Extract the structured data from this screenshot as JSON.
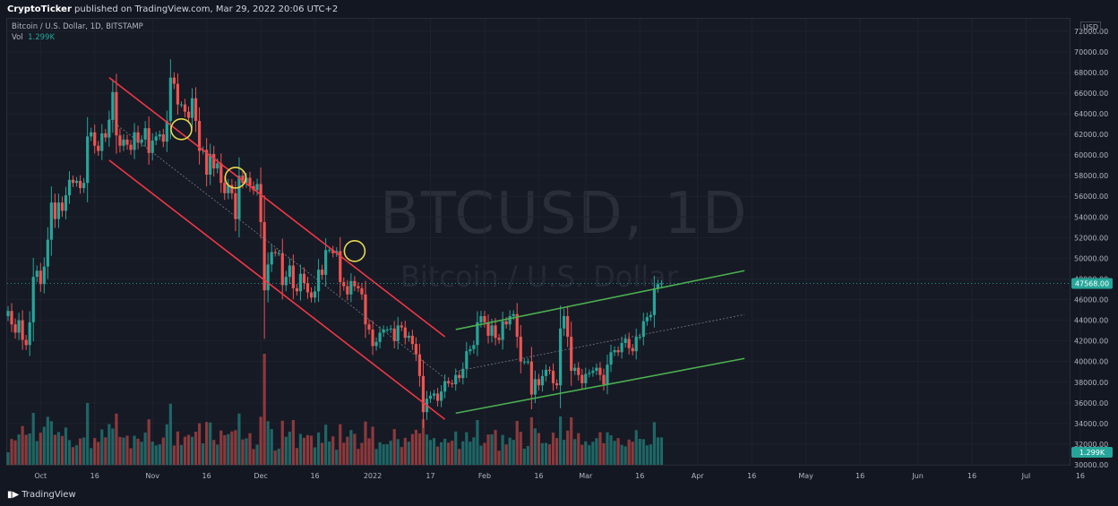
{
  "header": {
    "publisher": "CryptoTicker",
    "published_text": " published on TradingView.com, Mar 29, 2022 20:06 UTC+2"
  },
  "legend": {
    "symbol": "Bitcoin / U.S. Dollar, 1D, BITSTAMP",
    "vol_label": "Vol",
    "vol_value": "1.299K"
  },
  "watermark": {
    "ticker": "BTCUSD, 1D",
    "name": "Bitcoin / U.S. Dollar"
  },
  "footer": {
    "logo_text": "TradingView"
  },
  "chart_data": {
    "type": "candlestick",
    "currency": "USD",
    "price_axis": {
      "range": [
        30000,
        72500
      ],
      "ticks": [
        "30000.00",
        "32000.00",
        "34000.00",
        "36000.00",
        "38000.00",
        "40000.00",
        "42000.00",
        "44000.00",
        "46000.00",
        "48000.00",
        "50000.00",
        "52000.00",
        "54000.00",
        "56000.00",
        "58000.00",
        "60000.00",
        "62000.00",
        "64000.00",
        "66000.00",
        "68000.00",
        "70000.00",
        "72000.00"
      ]
    },
    "time_axis_labels": [
      "Oct",
      "16",
      "Nov",
      "16",
      "Dec",
      "16",
      "2022",
      "17",
      "Feb",
      "16",
      "Mar",
      "16",
      "Apr",
      "16",
      "May",
      "16",
      "Jun",
      "16",
      "Jul",
      "16"
    ],
    "start_date": "2021-09-22",
    "last_price_label": "47568.00",
    "last_price": 47568,
    "volume_label": "1.299K",
    "colors": {
      "up": "#26a69a",
      "down": "#ef5350",
      "descending_channel": "#f23645",
      "ascending_channel": "#4caf50",
      "circles": "#e6d84f",
      "last_price": "#26a69a"
    },
    "close_prices": [
      44900,
      43600,
      42800,
      44000,
      42100,
      41600,
      43800,
      48200,
      48800,
      47500,
      49200,
      51800,
      55400,
      53800,
      55400,
      54600,
      56100,
      57600,
      57300,
      57500,
      56800,
      57300,
      61800,
      62200,
      60900,
      60400,
      62100,
      61700,
      63400,
      66100,
      61900,
      60900,
      61500,
      61000,
      60500,
      62200,
      61200,
      61500,
      62600,
      60200,
      61400,
      61800,
      62000,
      61300,
      63300,
      67500,
      66900,
      64900,
      64900,
      64200,
      63600,
      65500,
      63300,
      60400,
      60500,
      58100,
      60100,
      58700,
      59200,
      57300,
      56300,
      57100,
      56300,
      53800,
      58000,
      57300,
      57800,
      57000,
      56600,
      57200,
      53500,
      46900,
      49400,
      50600,
      50500,
      50500,
      47400,
      48200,
      49300,
      47100,
      46800,
      48500,
      47600,
      46700,
      46200,
      46800,
      48900,
      48400,
      50800,
      50800,
      50500,
      50700,
      47700,
      47300,
      46500,
      47800,
      47300,
      47100,
      46500,
      43600,
      43100,
      41500,
      41900,
      42800,
      43100,
      43100,
      43200,
      42000,
      43500,
      43300,
      42300,
      42500,
      41700,
      40700,
      38600,
      35100,
      36400,
      36700,
      36900,
      36200,
      37100,
      38100,
      37900,
      37800,
      38700,
      38400,
      39300,
      41000,
      41200,
      41600,
      43800,
      44400,
      43800,
      42500,
      43500,
      42300,
      42100,
      43900,
      43600,
      44400,
      44600,
      42400,
      40000,
      40000,
      40000,
      36800,
      38300,
      37700,
      38600,
      39200,
      39100,
      37900,
      37700,
      43200,
      44400,
      42400,
      39100,
      39400,
      38700,
      37900,
      38800,
      38900,
      39100,
      39400,
      38700,
      37800,
      39700,
      40900,
      41100,
      40900,
      41800,
      42200,
      41300,
      41000,
      42400,
      42400,
      43900,
      44300,
      44500,
      47100,
      47500,
      47568
    ],
    "descending_channel": {
      "upper": [
        [
          "2021-10-20",
          67500
        ],
        [
          "2022-01-21",
          42400
        ]
      ],
      "lower": [
        [
          "2021-10-20",
          59500
        ],
        [
          "2022-01-21",
          34400
        ]
      ]
    },
    "ascending_channel": {
      "upper": [
        [
          "2022-01-24",
          43100
        ],
        [
          "2022-04-14",
          48800
        ]
      ],
      "lower": [
        [
          "2022-01-24",
          35000
        ],
        [
          "2022-04-14",
          40300
        ]
      ]
    },
    "touch_points": [
      [
        "2021-11-09",
        62500
      ],
      [
        "2021-11-24",
        57800
      ],
      [
        "2021-12-27",
        50700
      ]
    ]
  }
}
